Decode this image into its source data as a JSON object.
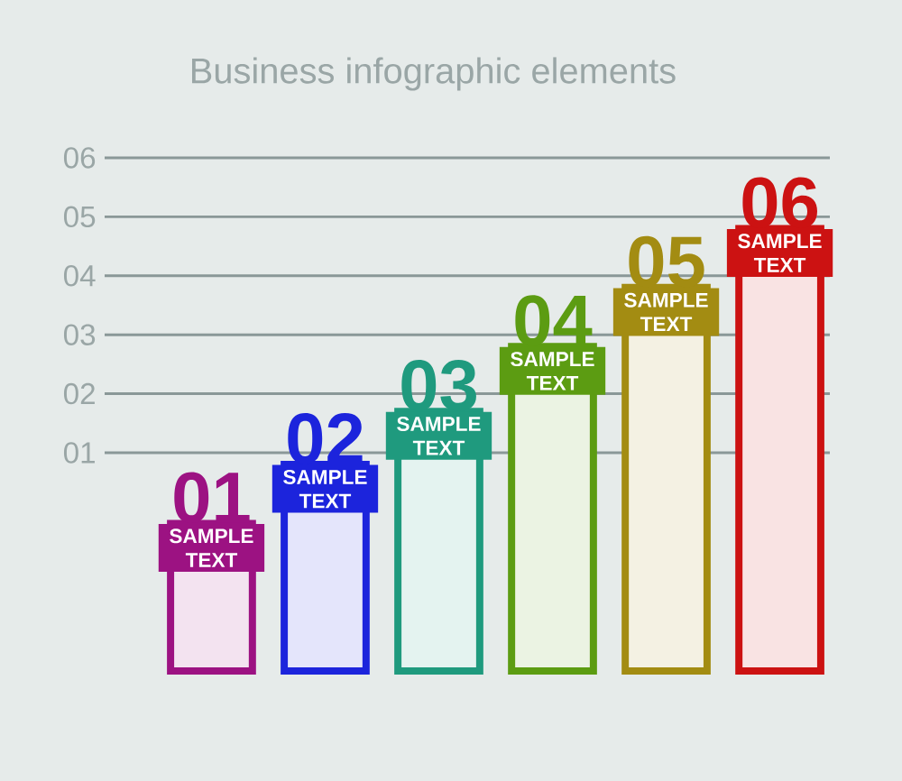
{
  "chart_data": {
    "type": "bar",
    "title": "Business infographic elements",
    "categories": [
      null,
      null,
      null,
      null,
      null,
      null
    ],
    "series": [
      {
        "colors": [
          "#9c1282",
          "#1c24dc",
          "#1f9a7e",
          "#5c9c12",
          "#a38c12",
          "#cc1212"
        ],
        "values": [
          2.5,
          3.5,
          4.4,
          5.5,
          6.5,
          7.5
        ],
        "base": [
          -2.7,
          -2.7,
          -2.7,
          -2.7,
          -2.7,
          -2.7
        ]
      }
    ],
    "annotations": [
      "01",
      "02",
      "03",
      "04",
      "05",
      "06",
      "SAMPLE TEXT",
      "SAMPLE TEXT",
      "SAMPLE TEXT",
      "SAMPLE TEXT",
      "SAMPLE TEXT",
      "SAMPLE TEXT"
    ],
    "ylim": [
      -2.7,
      6
    ],
    "yticks": [
      {
        "value": 1,
        "label": "01"
      },
      {
        "value": 2,
        "label": "02"
      },
      {
        "value": 3,
        "label": "03"
      },
      {
        "value": 4,
        "label": "04"
      },
      {
        "value": 5,
        "label": "05"
      },
      {
        "value": 6,
        "label": "06"
      }
    ],
    "grid": "y",
    "tick_labels": "y"
  }
}
